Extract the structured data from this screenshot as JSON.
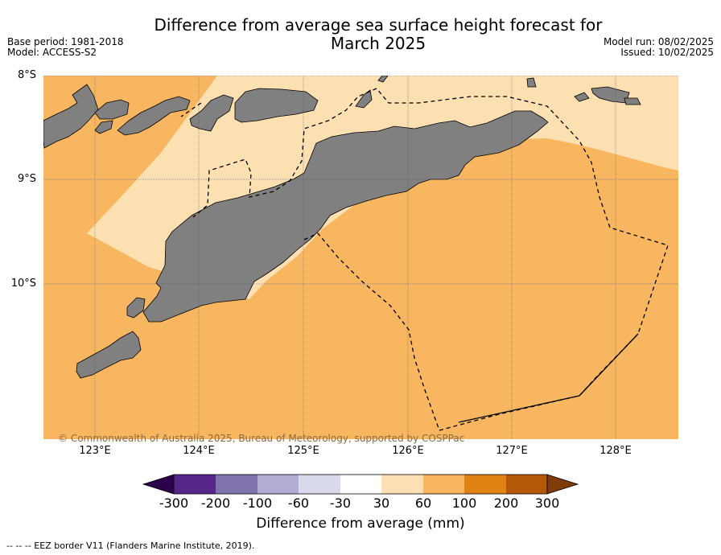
{
  "header": {
    "title_line1": "Difference from average sea surface height forecast for",
    "title_line2": "March 2025",
    "base_period": "Base period: 1981-2018",
    "model": "Model: ACCESS-S2",
    "model_run": "Model run: 08/02/2025",
    "issued": "Issued: 10/02/2025"
  },
  "map": {
    "latitude_labels": [
      "8°S",
      "9°S",
      "10°S"
    ],
    "longitude_labels": [
      "123°E",
      "124°E",
      "125°E",
      "126°E",
      "127°E",
      "128°E"
    ],
    "copyright": "© Commonwealth of Australia 2025, Bureau of Meteorology, supported by COSPPac",
    "land_color": "#808080",
    "background_anomaly_color": "#f9b660",
    "light_anomaly_color": "#fde0b2"
  },
  "colorbar": {
    "ticks": [
      "-300",
      "-200",
      "-100",
      "-60",
      "-30",
      "30",
      "60",
      "100",
      "200",
      "300"
    ],
    "colors": [
      "#542788",
      "#8073ac",
      "#b2abd2",
      "#d8daeb",
      "#ffffff",
      "#fee0b6",
      "#f9b660",
      "#e08214",
      "#b35806"
    ],
    "under_color": "#2d004b",
    "over_color": "#7f3b08",
    "label": "Difference from average (mm)"
  },
  "legend": {
    "eez_line": "--  --  -- EEZ border V11 (Flanders Marine Institute, 2019)."
  }
}
